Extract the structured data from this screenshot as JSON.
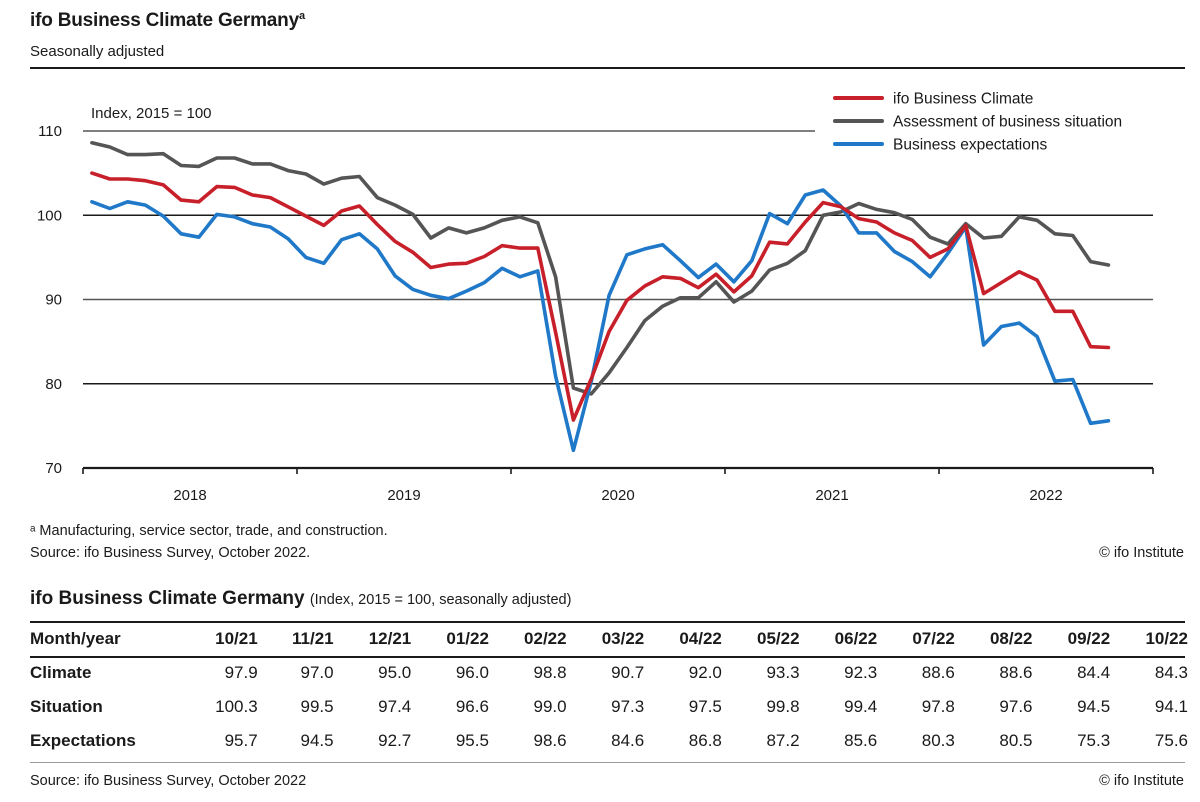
{
  "header": {
    "title": "ifo Business Climate Germany",
    "title_superscript": "a",
    "subtitle": "Seasonally adjusted"
  },
  "chart_data": {
    "type": "line",
    "title": "ifo Business Climate Germany",
    "subtitle": "Seasonally adjusted",
    "ylabel": "Index, 2015 = 100",
    "xlabel": "",
    "ylim": [
      70,
      110
    ],
    "yticks": [
      70,
      80,
      90,
      100,
      110
    ],
    "ytick_labels": [
      "70",
      "80",
      "90",
      "100",
      "110"
    ],
    "xtick_labels": [
      "2018",
      "2019",
      "2020",
      "2021",
      "2022"
    ],
    "grid": "horizontal",
    "legend_position": "top-right",
    "x_start": "2018-01",
    "x_end": "2022-10",
    "x_frequency": "monthly",
    "series": [
      {
        "name": "ifo Business Climate",
        "color": "#c8202a",
        "values": [
          105.0,
          104.3,
          104.3,
          104.1,
          103.6,
          101.8,
          101.6,
          103.4,
          103.3,
          102.4,
          102.1,
          101.0,
          99.9,
          98.8,
          100.5,
          101.1,
          98.9,
          96.9,
          95.6,
          93.8,
          94.2,
          94.3,
          95.1,
          96.4,
          96.1,
          96.1,
          86.1,
          75.7,
          80.6,
          86.2,
          89.9,
          91.6,
          92.7,
          92.5,
          91.4,
          93.0,
          90.9,
          92.8,
          96.8,
          96.6,
          99.2,
          101.5,
          101.0,
          99.6,
          99.2,
          97.9,
          97.0,
          95.0,
          96.0,
          98.8,
          90.7,
          92.0,
          93.3,
          92.3,
          88.6,
          88.6,
          84.4,
          84.3
        ]
      },
      {
        "name": "Assessment of business situation",
        "color": "#555555",
        "values": [
          108.6,
          108.1,
          107.2,
          107.2,
          107.3,
          105.9,
          105.8,
          106.8,
          106.8,
          106.1,
          106.1,
          105.3,
          104.9,
          103.7,
          104.4,
          104.6,
          102.1,
          101.2,
          100.1,
          97.3,
          98.5,
          97.9,
          98.5,
          99.4,
          99.8,
          99.1,
          92.7,
          79.5,
          78.8,
          81.3,
          84.3,
          87.5,
          89.2,
          90.2,
          90.2,
          92.1,
          89.7,
          91.0,
          93.5,
          94.3,
          95.8,
          100.0,
          100.4,
          101.4,
          100.7,
          100.3,
          99.5,
          97.4,
          96.6,
          99.0,
          97.3,
          97.5,
          99.8,
          99.4,
          97.8,
          97.6,
          94.5,
          94.1
        ]
      },
      {
        "name": "Business expectations",
        "color": "#1f78c8",
        "values": [
          101.6,
          100.8,
          101.6,
          101.2,
          99.9,
          97.8,
          97.4,
          100.1,
          99.8,
          99.0,
          98.6,
          97.2,
          95.0,
          94.3,
          97.1,
          97.8,
          96.0,
          92.8,
          91.2,
          90.5,
          90.1,
          91.0,
          92.0,
          93.7,
          92.7,
          93.4,
          80.9,
          72.1,
          80.3,
          90.5,
          95.3,
          96.0,
          96.5,
          94.6,
          92.6,
          94.2,
          92.1,
          94.6,
          100.2,
          99.0,
          102.4,
          103.0,
          101.1,
          97.9,
          97.9,
          95.7,
          94.5,
          92.7,
          95.5,
          98.6,
          84.6,
          86.8,
          87.2,
          85.6,
          80.3,
          80.5,
          75.3,
          75.6
        ]
      }
    ]
  },
  "footnotes": {
    "a": "ᵃ Manufacturing, service sector, trade, and construction.",
    "source": "Source: ifo Business Survey, October 2022.",
    "copyright": "© ifo Institute"
  },
  "table": {
    "title": "ifo Business Climate Germany",
    "title_note": "(Index, 2015 = 100, seasonally adjusted)",
    "header": [
      "Month/year",
      "10/21",
      "11/21",
      "12/21",
      "01/22",
      "02/22",
      "03/22",
      "04/22",
      "05/22",
      "06/22",
      "07/22",
      "08/22",
      "09/22",
      "10/22"
    ],
    "rows": [
      {
        "label": "Climate",
        "values": [
          "97.9",
          "97.0",
          "95.0",
          "96.0",
          "98.8",
          "90.7",
          "92.0",
          "93.3",
          "92.3",
          "88.6",
          "88.6",
          "84.4",
          "84.3"
        ]
      },
      {
        "label": "Situation",
        "values": [
          "100.3",
          "99.5",
          "97.4",
          "96.6",
          "99.0",
          "97.3",
          "97.5",
          "99.8",
          "99.4",
          "97.8",
          "97.6",
          "94.5",
          "94.1"
        ]
      },
      {
        "label": "Expectations",
        "values": [
          "95.7",
          "94.5",
          "92.7",
          "95.5",
          "98.6",
          "84.6",
          "86.8",
          "87.2",
          "85.6",
          "80.3",
          "80.5",
          "75.3",
          "75.6"
        ]
      }
    ],
    "source": "Source: ifo Business Survey, October 2022",
    "copyright": "© ifo Institute"
  }
}
